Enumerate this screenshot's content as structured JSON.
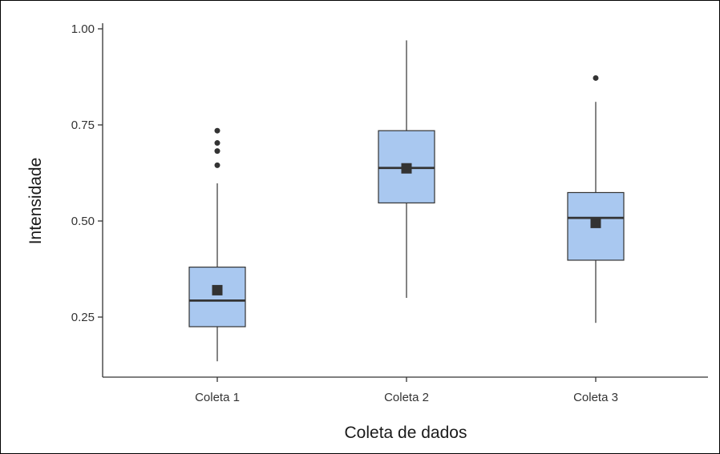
{
  "chart_data": {
    "type": "box",
    "xlabel": "Coleta de dados",
    "ylabel": "Intensidade",
    "categories": [
      "Coleta 1",
      "Coleta 2",
      "Coleta 3"
    ],
    "yticks": [
      0.25,
      0.5,
      0.75,
      1.0
    ],
    "ytick_labels": [
      "0.25",
      "0.50",
      "0.75",
      "1.00"
    ],
    "ylim": [
      0.11,
      1.02
    ],
    "grid": false,
    "legend": "none",
    "boxes": [
      {
        "category": "Coleta 1",
        "whisker_low": 0.135,
        "q1": 0.225,
        "median": 0.293,
        "q3": 0.38,
        "whisker_high": 0.598,
        "mean": 0.32,
        "outliers": [
          0.645,
          0.682,
          0.703,
          0.735
        ]
      },
      {
        "category": "Coleta 2",
        "whisker_low": 0.3,
        "q1": 0.547,
        "median": 0.638,
        "q3": 0.735,
        "whisker_high": 0.97,
        "mean": 0.637,
        "outliers": []
      },
      {
        "category": "Coleta 3",
        "whisker_low": 0.235,
        "q1": 0.398,
        "median": 0.508,
        "q3": 0.574,
        "whisker_high": 0.81,
        "mean": 0.495,
        "outliers": [
          0.872
        ]
      }
    ],
    "colors": {
      "box_fill": "#a9c8f0",
      "box_stroke": "#333333",
      "point": "#333333",
      "axis": "#333333"
    }
  }
}
